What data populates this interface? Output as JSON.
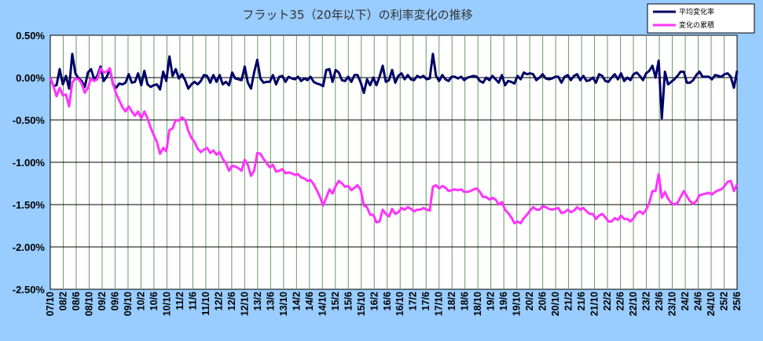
{
  "chart_data": {
    "type": "line",
    "title": "フラット35（20年以下）の利率変化の推移",
    "xlabel": "",
    "ylabel": "",
    "ylim": [
      -2.5,
      0.5
    ],
    "yticks": [
      0.5,
      0.0,
      -0.5,
      -1.0,
      -1.5,
      -2.0,
      -2.5
    ],
    "ytick_labels": [
      "0.50%",
      "0.00%",
      "-0.50%",
      "-1.00%",
      "-1.50%",
      "-2.00%",
      "-2.50%"
    ],
    "x_start": "07/10",
    "x_end": "25/6",
    "x_tick_labels": [
      "07/10",
      "08/2",
      "08/6",
      "08/10",
      "09/2",
      "09/6",
      "09/10",
      "10/2",
      "10/6",
      "10/10",
      "11/2",
      "11/6",
      "11/10",
      "12/2",
      "12/6",
      "12/10",
      "13/2",
      "13/6",
      "13/10",
      "14/2",
      "14/6",
      "14/10",
      "15/2",
      "15/6",
      "15/10",
      "16/2",
      "16/6",
      "16/10",
      "17/2",
      "17/6",
      "17/10",
      "18/2",
      "18/6",
      "18/10",
      "19/2",
      "19/6",
      "19/10",
      "20/2",
      "20/6",
      "20/10",
      "21/2",
      "21/6",
      "21/10",
      "22/2",
      "22/6",
      "22/10",
      "23/2",
      "23/6",
      "23/10",
      "24/2",
      "24/6",
      "24/10",
      "25/2",
      "25/6"
    ],
    "grid": true,
    "legend_position": "top-right",
    "colors": {
      "plot_bg": "#ffffff",
      "page_bg": "#99ccff",
      "monthly": "#000066",
      "cumulative": "#ff33ff",
      "grid_h": "#000000",
      "grid_v": "#669966"
    },
    "series": [
      {
        "name": "平均変化率",
        "values": [
          0.0,
          -0.1,
          -0.09,
          0.1,
          -0.08,
          0.02,
          -0.13,
          0.28,
          0.05,
          -0.01,
          -0.04,
          -0.11,
          0.06,
          0.1,
          -0.02,
          0.02,
          0.13,
          -0.04,
          0.01,
          0.1,
          -0.08,
          -0.12,
          -0.07,
          -0.08,
          -0.06,
          0.04,
          -0.06,
          -0.05,
          0.05,
          -0.09,
          0.08,
          -0.08,
          -0.11,
          -0.09,
          -0.08,
          -0.14,
          0.07,
          -0.04,
          0.25,
          0.02,
          0.1,
          -0.01,
          0.04,
          -0.03,
          -0.13,
          -0.08,
          -0.05,
          -0.08,
          -0.04,
          0.03,
          0.02,
          -0.06,
          0.03,
          -0.05,
          0.03,
          -0.08,
          -0.05,
          -0.09,
          0.06,
          -0.01,
          -0.02,
          -0.03,
          0.13,
          -0.06,
          -0.13,
          0.06,
          0.21,
          -0.01,
          -0.06,
          -0.05,
          -0.05,
          0.03,
          -0.08,
          0.01,
          0.02,
          -0.05,
          0.01,
          -0.01,
          -0.02,
          0.01,
          -0.04,
          -0.01,
          -0.03,
          0.01,
          -0.05,
          -0.07,
          -0.08,
          -0.1,
          0.09,
          0.1,
          -0.05,
          0.09,
          0.06,
          -0.03,
          -0.04,
          0.01,
          -0.05,
          0.03,
          0.03,
          -0.06,
          -0.18,
          -0.02,
          -0.09,
          0.0,
          -0.09,
          0.01,
          0.14,
          -0.05,
          -0.03,
          0.09,
          -0.06,
          0.02,
          0.05,
          -0.02,
          0.03,
          -0.02,
          -0.03,
          0.02,
          0.0,
          0.02,
          -0.02,
          -0.01,
          0.28,
          0.02,
          -0.04,
          0.03,
          -0.02,
          -0.04,
          0.01,
          0.01,
          -0.01,
          0.01,
          -0.03,
          0.0,
          0.01,
          0.02,
          0.01,
          -0.04,
          -0.06,
          0.0,
          -0.03,
          0.02,
          -0.02,
          -0.06,
          0.03,
          -0.09,
          -0.04,
          -0.05,
          -0.07,
          0.02,
          -0.02,
          0.06,
          0.04,
          0.05,
          0.04,
          -0.03,
          0.0,
          0.04,
          -0.01,
          -0.02,
          -0.01,
          0.01,
          0.01,
          -0.06,
          0.01,
          0.03,
          -0.03,
          0.02,
          0.04,
          -0.03,
          0.02,
          -0.04,
          -0.03,
          0.0,
          -0.06,
          0.04,
          0.02,
          -0.04,
          -0.05,
          0.0,
          0.04,
          -0.02,
          0.05,
          -0.04,
          0.0,
          -0.03,
          0.04,
          0.06,
          0.02,
          -0.03,
          0.05,
          0.08,
          0.14,
          0.0,
          0.2,
          -0.48,
          0.07,
          -0.08,
          -0.05,
          -0.02,
          0.02,
          0.07,
          0.07,
          -0.06,
          -0.06,
          -0.03,
          0.03,
          0.07,
          0.01,
          0.01,
          0.01,
          -0.02,
          0.03,
          0.02,
          0.01,
          0.04,
          0.05,
          0.01,
          -0.12,
          0.08
        ]
      },
      {
        "name": "変化の累積",
        "values": [
          0.0,
          -0.1,
          -0.22,
          -0.12,
          -0.21,
          -0.2,
          -0.34,
          -0.06,
          -0.01,
          -0.02,
          -0.07,
          -0.18,
          -0.12,
          -0.01,
          -0.04,
          -0.02,
          0.11,
          0.06,
          0.07,
          0.11,
          -0.07,
          -0.19,
          -0.27,
          -0.35,
          -0.4,
          -0.34,
          -0.4,
          -0.45,
          -0.4,
          -0.48,
          -0.4,
          -0.48,
          -0.59,
          -0.68,
          -0.76,
          -0.9,
          -0.83,
          -0.87,
          -0.62,
          -0.6,
          -0.5,
          -0.51,
          -0.47,
          -0.5,
          -0.63,
          -0.71,
          -0.76,
          -0.84,
          -0.88,
          -0.85,
          -0.83,
          -0.89,
          -0.86,
          -0.91,
          -0.88,
          -0.96,
          -1.01,
          -1.1,
          -1.04,
          -1.05,
          -1.07,
          -1.1,
          -0.97,
          -1.03,
          -1.16,
          -1.1,
          -0.89,
          -0.9,
          -0.96,
          -1.01,
          -1.06,
          -1.03,
          -1.11,
          -1.1,
          -1.08,
          -1.13,
          -1.12,
          -1.13,
          -1.15,
          -1.14,
          -1.18,
          -1.19,
          -1.22,
          -1.21,
          -1.26,
          -1.33,
          -1.41,
          -1.51,
          -1.42,
          -1.32,
          -1.37,
          -1.28,
          -1.22,
          -1.25,
          -1.29,
          -1.28,
          -1.33,
          -1.3,
          -1.27,
          -1.33,
          -1.51,
          -1.53,
          -1.62,
          -1.62,
          -1.71,
          -1.7,
          -1.56,
          -1.61,
          -1.64,
          -1.55,
          -1.61,
          -1.59,
          -1.54,
          -1.56,
          -1.53,
          -1.55,
          -1.58,
          -1.56,
          -1.56,
          -1.54,
          -1.56,
          -1.57,
          -1.29,
          -1.27,
          -1.31,
          -1.28,
          -1.3,
          -1.34,
          -1.33,
          -1.32,
          -1.33,
          -1.32,
          -1.35,
          -1.35,
          -1.34,
          -1.32,
          -1.31,
          -1.35,
          -1.41,
          -1.41,
          -1.44,
          -1.42,
          -1.44,
          -1.5,
          -1.47,
          -1.56,
          -1.6,
          -1.65,
          -1.72,
          -1.7,
          -1.72,
          -1.66,
          -1.62,
          -1.57,
          -1.53,
          -1.56,
          -1.56,
          -1.52,
          -1.53,
          -1.55,
          -1.56,
          -1.55,
          -1.54,
          -1.6,
          -1.59,
          -1.56,
          -1.59,
          -1.57,
          -1.53,
          -1.56,
          -1.54,
          -1.58,
          -1.61,
          -1.61,
          -1.67,
          -1.63,
          -1.61,
          -1.65,
          -1.7,
          -1.7,
          -1.66,
          -1.68,
          -1.63,
          -1.67,
          -1.67,
          -1.7,
          -1.66,
          -1.6,
          -1.58,
          -1.61,
          -1.56,
          -1.48,
          -1.34,
          -1.34,
          -1.14,
          -1.42,
          -1.35,
          -1.43,
          -1.48,
          -1.5,
          -1.48,
          -1.41,
          -1.34,
          -1.4,
          -1.46,
          -1.49,
          -1.46,
          -1.39,
          -1.38,
          -1.37,
          -1.36,
          -1.38,
          -1.35,
          -1.33,
          -1.32,
          -1.28,
          -1.23,
          -1.22,
          -1.34,
          -1.26
        ]
      }
    ]
  }
}
